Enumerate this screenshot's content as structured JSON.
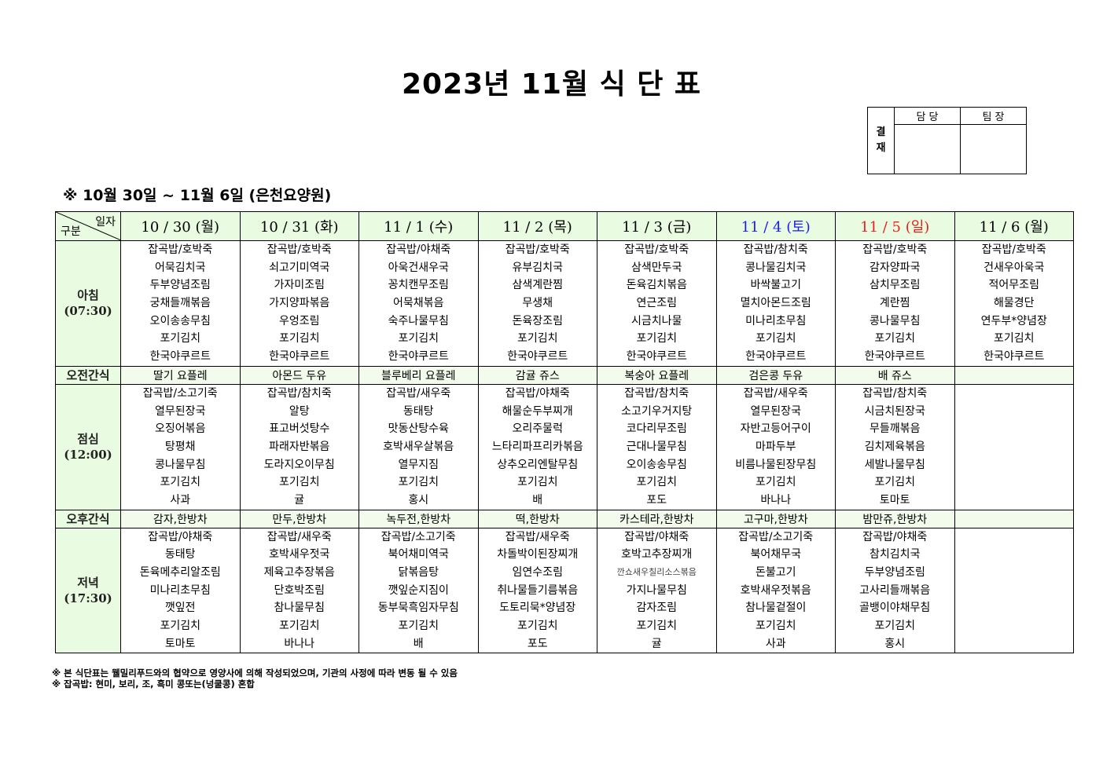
{
  "title": "2023년 11월 식 단 표",
  "approval": {
    "label": "결\n재",
    "label_top": "결",
    "label_bottom": "재",
    "col1": "담 당",
    "col2": "팀 장"
  },
  "subtitle": "※ 10월 30일 ~ 11월 6일 (은천요양원)",
  "corner": {
    "top": "일자",
    "bottom": "구분"
  },
  "colors": {
    "saturday": "#1a1aff",
    "sunday": "#e8201c",
    "header_bg": "#e9fbe0",
    "snack_bg": "#f2fbec"
  },
  "rows": {
    "breakfast": {
      "name": "아침",
      "time": "(07:30)"
    },
    "am_snack": {
      "name": "오전간식"
    },
    "lunch": {
      "name": "점심",
      "time": "(12:00)"
    },
    "pm_snack": {
      "name": "오후간식"
    },
    "dinner": {
      "name": "저녁",
      "time": "(17:30)"
    }
  },
  "days": [
    {
      "date": "10 / 30 (월)",
      "color": "default",
      "breakfast": [
        "잡곡밥/호박죽",
        "어묵김치국",
        "두부양념조림",
        "궁채들깨볶음",
        "오이송송무침",
        "포기김치",
        "한국야쿠르트"
      ],
      "am_snack": "딸기 요플레",
      "lunch": [
        "잡곡밥/소고기죽",
        "열무된장국",
        "오징어볶음",
        "탕평채",
        "콩나물무침",
        "포기김치",
        "사과"
      ],
      "pm_snack": "감자,한방차",
      "dinner": [
        "잡곡밥/야채죽",
        "동태탕",
        "돈육메추리알조림",
        "미나리초무침",
        "깻잎전",
        "포기김치",
        "토마토"
      ]
    },
    {
      "date": "10 / 31 (화)",
      "color": "default",
      "breakfast": [
        "잡곡밥/호박죽",
        "쇠고기미역국",
        "가자미조림",
        "가지양파볶음",
        "우엉조림",
        "포기김치",
        "한국야쿠르트"
      ],
      "am_snack": "아몬드 두유",
      "lunch": [
        "잡곡밥/참치죽",
        "알탕",
        "표고버섯탕수",
        "파래자반볶음",
        "도라지오이무침",
        "포기김치",
        "귤"
      ],
      "pm_snack": "만두,한방차",
      "dinner": [
        "잡곡밥/새우죽",
        "호박새우젓국",
        "제육고추장볶음",
        "단호박조림",
        "참나물무침",
        "포기김치",
        "바나나"
      ]
    },
    {
      "date": "11 / 1 (수)",
      "color": "default",
      "breakfast": [
        "잡곡밥/야채죽",
        "아욱건새우국",
        "꽁치캔무조림",
        "어묵채볶음",
        "숙주나물무침",
        "포기김치",
        "한국야쿠르트"
      ],
      "am_snack": "블루베리 요플레",
      "lunch": [
        "잡곡밥/새우죽",
        "동태탕",
        "맛동산탕수육",
        "호박새우살볶음",
        "열무지짐",
        "포기김치",
        "홍시"
      ],
      "pm_snack": "녹두전,한방차",
      "dinner": [
        "잡곡밥/소고기죽",
        "북어채미역국",
        "닭볶음탕",
        "깻잎순지짐이",
        "동부묵흑임자무침",
        "포기김치",
        "배"
      ]
    },
    {
      "date": "11 / 2 (목)",
      "color": "default",
      "breakfast": [
        "잡곡밥/호박죽",
        "유부김치국",
        "삼색계란찜",
        "무생채",
        "돈육장조림",
        "포기김치",
        "한국야쿠르트"
      ],
      "am_snack": "감귤 쥬스",
      "lunch": [
        "잡곡밥/야채죽",
        "해물순두부찌개",
        "오리주물럭",
        "느타리파프리카볶음",
        "상추오리엔탈무침",
        "포기김치",
        "배"
      ],
      "pm_snack": "떡,한방차",
      "dinner": [
        "잡곡밥/새우죽",
        "차돌박이된장찌개",
        "임연수조림",
        "취나물들기름볶음",
        "도토리묵*양념장",
        "포기김치",
        "포도"
      ]
    },
    {
      "date": "11 / 3 (금)",
      "color": "default",
      "breakfast": [
        "잡곡밥/호박죽",
        "삼색만두국",
        "돈육김치볶음",
        "연근조림",
        "시금치나물",
        "포기김치",
        "한국야쿠르트"
      ],
      "am_snack": "복숭아 요플레",
      "lunch": [
        "잡곡밥/참치죽",
        "소고기우거지탕",
        "코다리무조림",
        "근대나물무침",
        "오이송송무침",
        "포기김치",
        "포도"
      ],
      "pm_snack": "카스테라,한방차",
      "dinner": [
        "잡곡밥/야채죽",
        "호박고추장찌개",
        "깐쇼새우칠리소스볶음",
        "가지나물무침",
        "감자조림",
        "포기김치",
        "귤"
      ]
    },
    {
      "date": "11 / 4 (토)",
      "color": "saturday",
      "breakfast": [
        "잡곡밥/참치죽",
        "콩나물김치국",
        "바싹불고기",
        "멸치아몬드조림",
        "미나리초무침",
        "포기김치",
        "한국야쿠르트"
      ],
      "am_snack": "검은콩 두유",
      "lunch": [
        "잡곡밥/새우죽",
        "열무된장국",
        "자반고등어구이",
        "마파두부",
        "비름나물된장무침",
        "포기김치",
        "바나나"
      ],
      "pm_snack": "고구마,한방차",
      "dinner": [
        "잡곡밥/소고기죽",
        "북어채무국",
        "돈불고기",
        "호박새우젓볶음",
        "참나물겉절이",
        "포기김치",
        "사과"
      ]
    },
    {
      "date": "11 / 5 (일)",
      "color": "sunday",
      "breakfast": [
        "잡곡밥/호박죽",
        "감자양파국",
        "삼치무조림",
        "계란찜",
        "콩나물무침",
        "포기김치",
        "한국야쿠르트"
      ],
      "am_snack": "배 쥬스",
      "lunch": [
        "잡곡밥/참치죽",
        "시금치된장국",
        "무들깨볶음",
        "김치제육볶음",
        "세발나물무침",
        "포기김치",
        "토마토"
      ],
      "pm_snack": "밤만쥬,한방차",
      "dinner": [
        "잡곡밥/야채죽",
        "참치김치국",
        "두부양념조림",
        "고사리들깨볶음",
        "골뱅이야채무침",
        "포기김치",
        "홍시"
      ]
    },
    {
      "date": "11 / 6 (월)",
      "color": "default",
      "breakfast": [
        "잡곡밥/호박죽",
        "건새우아욱국",
        "적어무조림",
        "해물경단",
        "연두부*양념장",
        "포기김치",
        "한국야쿠르트"
      ],
      "am_snack": "",
      "lunch": [],
      "pm_snack": "",
      "dinner": []
    }
  ],
  "footnotes": [
    "※ 본 식단표는 웰밀리푸드와의 협약으로 영양사에 의해 작성되었으며, 기관의 사정에 따라 변동 될 수 있음",
    "※ 잡곡밥: 현미, 보리, 조, 흑미 콩또는(넝쿨콩) 혼합"
  ]
}
